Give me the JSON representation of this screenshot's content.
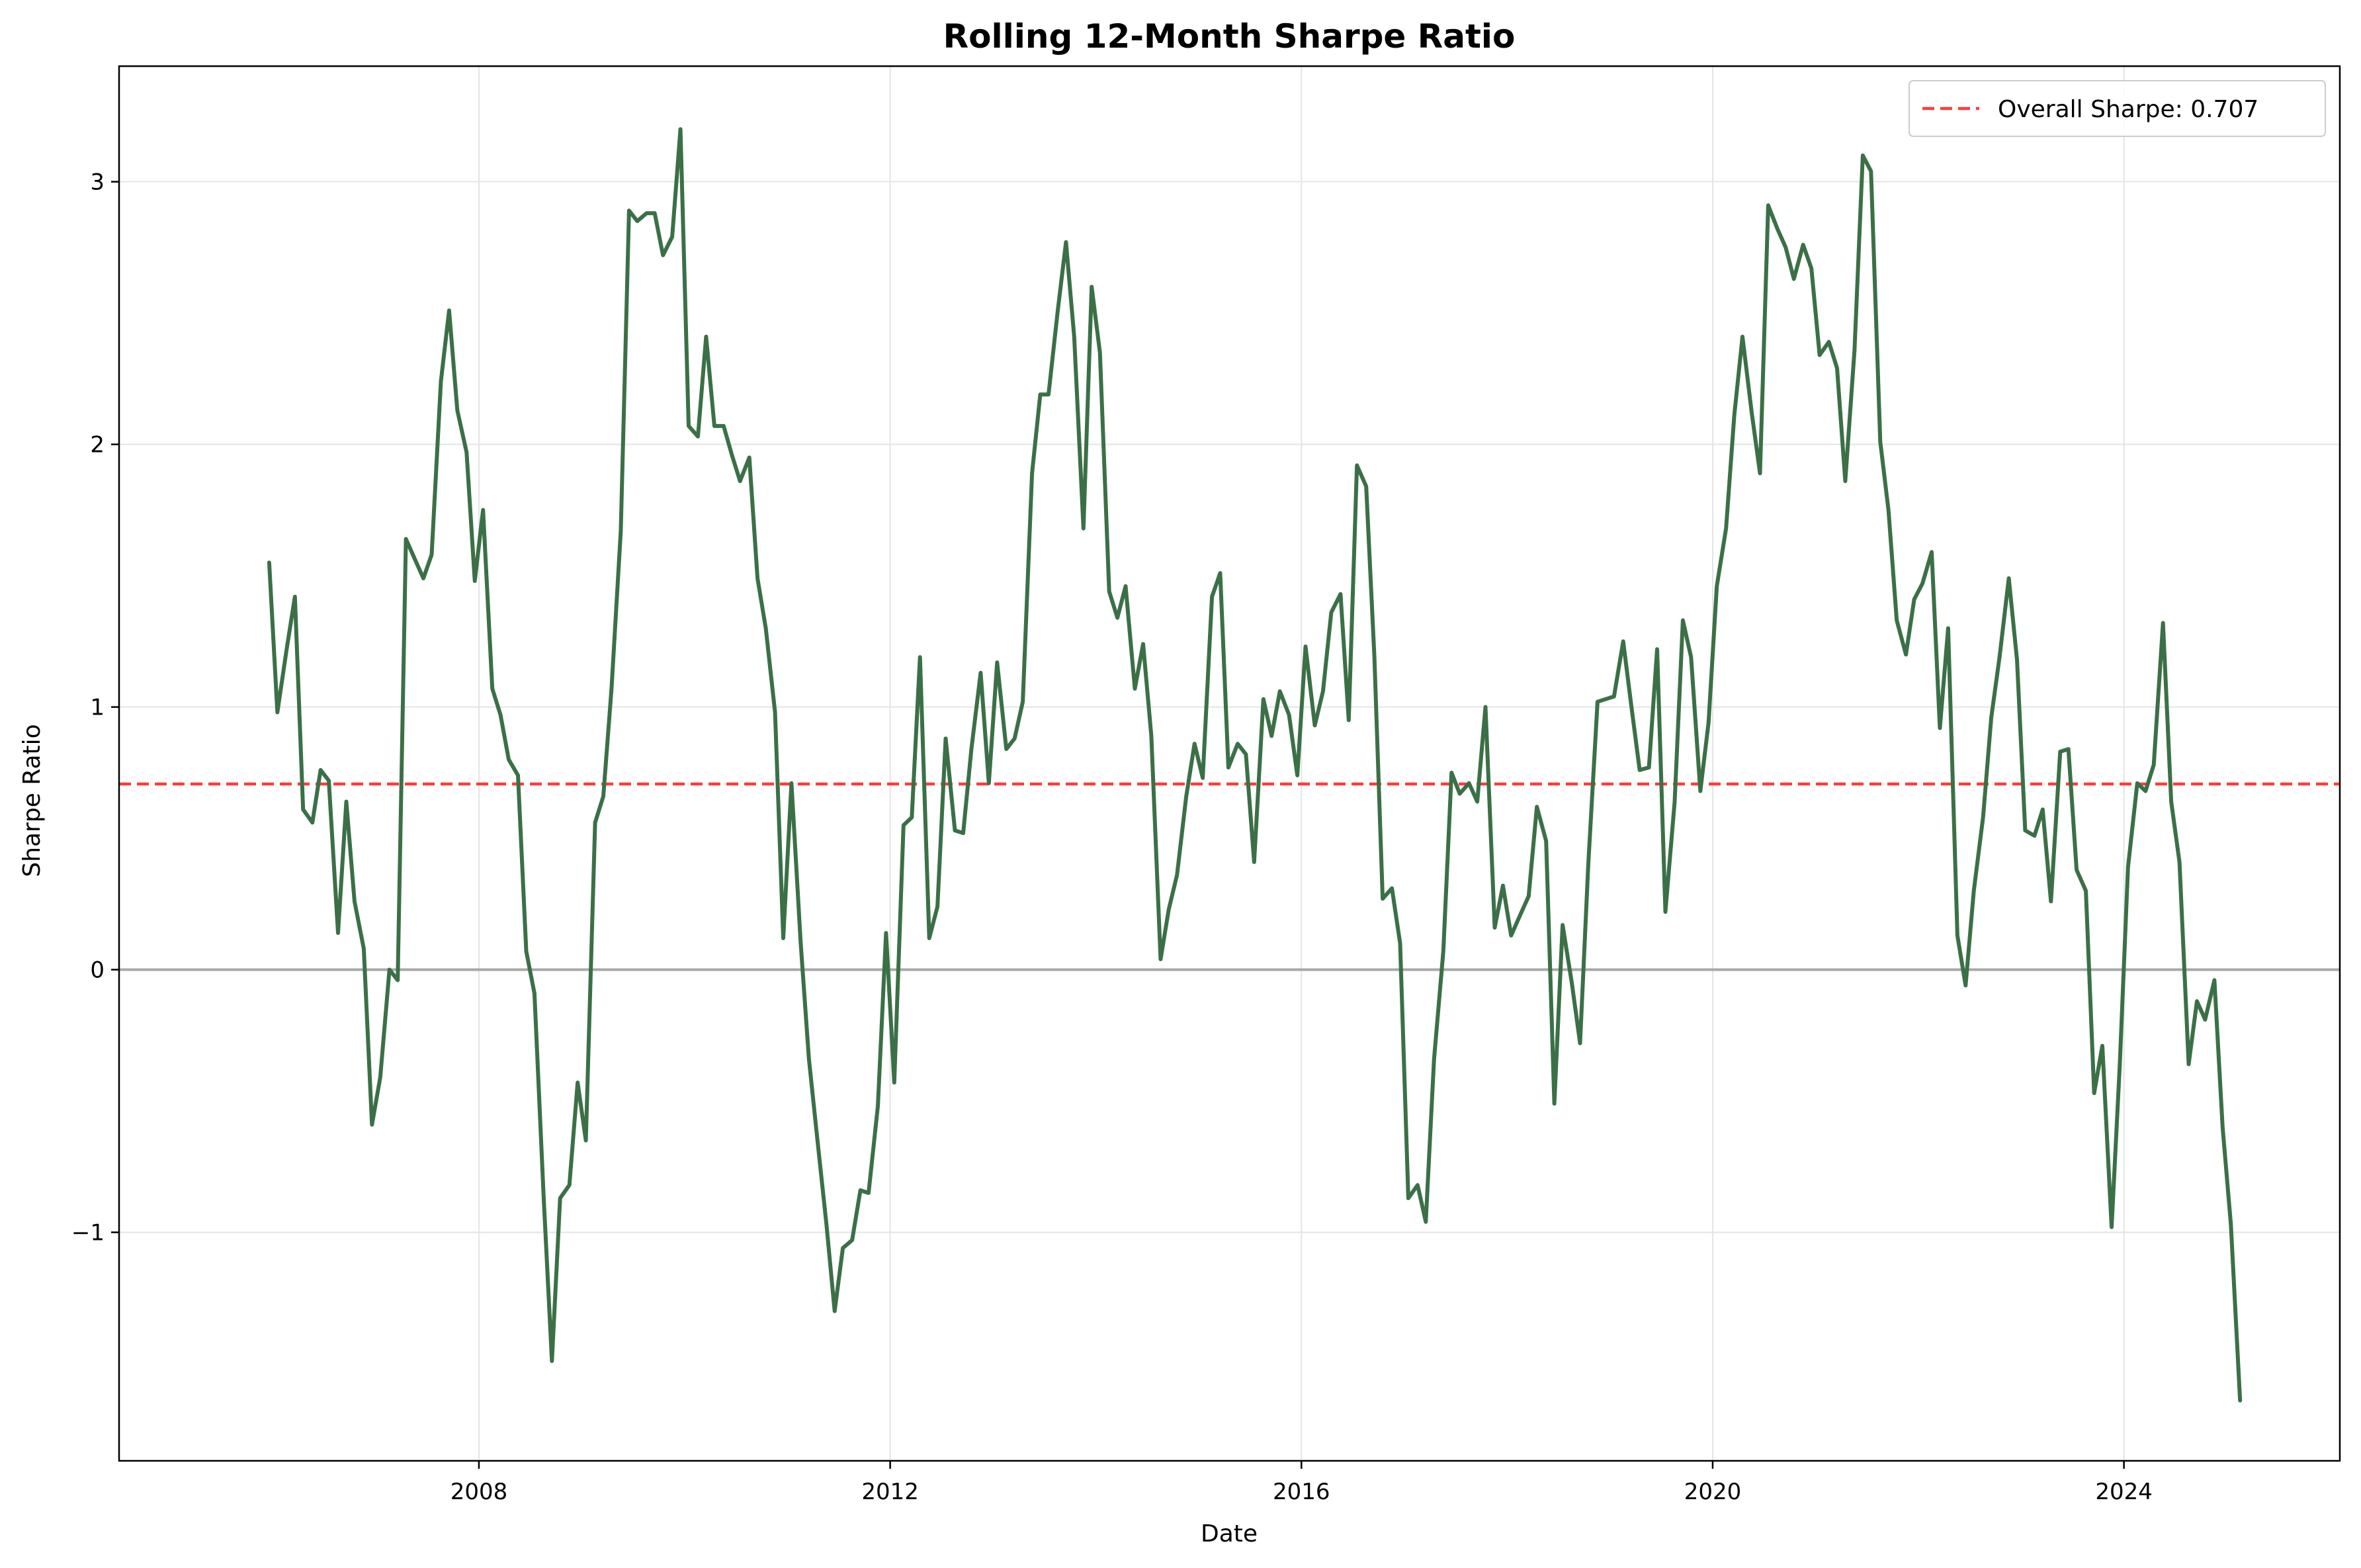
{
  "chart_data": {
    "type": "line",
    "title": "Rolling 12-Month Sharpe Ratio",
    "xlabel": "Date",
    "ylabel": "Sharpe Ratio",
    "xlim": [
      2004.5,
      2026.1
    ],
    "ylim": [
      -1.87,
      3.44
    ],
    "x_ticks": [
      2008,
      2012,
      2016,
      2020,
      2024
    ],
    "x_tick_labels": [
      "2008",
      "2012",
      "2016",
      "2020",
      "2024"
    ],
    "y_ticks": [
      -1,
      0,
      1,
      2,
      3
    ],
    "y_tick_labels": [
      "−1",
      "0",
      "1",
      "2",
      "3"
    ],
    "grid": true,
    "legend_position": "top-right",
    "reference_lines": [
      {
        "name": "Overall Sharpe: 0.707",
        "y": 0.707,
        "color": "#ff3b3b",
        "style": "dashed",
        "in_legend": true
      },
      {
        "name": "",
        "y": 0,
        "color": "#a8a8a8",
        "style": "solid",
        "in_legend": false
      }
    ],
    "series": [
      {
        "color": "#3b7047",
        "points": [
          [
            2005.96,
            1.55
          ],
          [
            2006.04,
            0.98
          ],
          [
            2006.13,
            1.22
          ],
          [
            2006.21,
            1.42
          ],
          [
            2006.29,
            0.61
          ],
          [
            2006.38,
            0.56
          ],
          [
            2006.46,
            0.76
          ],
          [
            2006.54,
            0.72
          ],
          [
            2006.63,
            0.14
          ],
          [
            2006.71,
            0.64
          ],
          [
            2006.79,
            0.26
          ],
          [
            2006.88,
            0.08
          ],
          [
            2006.96,
            -0.59
          ],
          [
            2007.04,
            -0.41
          ],
          [
            2007.13,
            0.0
          ],
          [
            2007.21,
            -0.04
          ],
          [
            2007.29,
            1.64
          ],
          [
            2007.38,
            1.56
          ],
          [
            2007.46,
            1.49
          ],
          [
            2007.54,
            1.58
          ],
          [
            2007.63,
            2.24
          ],
          [
            2007.71,
            2.51
          ],
          [
            2007.79,
            2.13
          ],
          [
            2007.88,
            1.97
          ],
          [
            2007.96,
            1.48
          ],
          [
            2008.04,
            1.75
          ],
          [
            2008.13,
            1.07
          ],
          [
            2008.21,
            0.97
          ],
          [
            2008.29,
            0.8
          ],
          [
            2008.38,
            0.74
          ],
          [
            2008.46,
            0.07
          ],
          [
            2008.54,
            -0.09
          ],
          [
            2008.63,
            -0.87
          ],
          [
            2008.71,
            -1.49
          ],
          [
            2008.79,
            -0.87
          ],
          [
            2008.88,
            -0.82
          ],
          [
            2008.96,
            -0.43
          ],
          [
            2009.04,
            -0.65
          ],
          [
            2009.13,
            0.56
          ],
          [
            2009.21,
            0.66
          ],
          [
            2009.29,
            1.07
          ],
          [
            2009.38,
            1.67
          ],
          [
            2009.46,
            2.89
          ],
          [
            2009.54,
            2.85
          ],
          [
            2009.63,
            2.88
          ],
          [
            2009.71,
            2.88
          ],
          [
            2009.79,
            2.72
          ],
          [
            2009.88,
            2.79
          ],
          [
            2009.96,
            3.2
          ],
          [
            2010.04,
            2.07
          ],
          [
            2010.13,
            2.03
          ],
          [
            2010.21,
            2.41
          ],
          [
            2010.29,
            2.07
          ],
          [
            2010.38,
            2.07
          ],
          [
            2010.46,
            1.96
          ],
          [
            2010.54,
            1.86
          ],
          [
            2010.63,
            1.95
          ],
          [
            2010.71,
            1.49
          ],
          [
            2010.79,
            1.3
          ],
          [
            2010.88,
            0.98
          ],
          [
            2010.96,
            0.12
          ],
          [
            2011.04,
            0.71
          ],
          [
            2011.13,
            0.1
          ],
          [
            2011.21,
            -0.34
          ],
          [
            2011.29,
            -0.64
          ],
          [
            2011.38,
            -0.97
          ],
          [
            2011.46,
            -1.3
          ],
          [
            2011.54,
            -1.06
          ],
          [
            2011.63,
            -1.03
          ],
          [
            2011.71,
            -0.84
          ],
          [
            2011.79,
            -0.85
          ],
          [
            2011.88,
            -0.52
          ],
          [
            2011.96,
            0.14
          ],
          [
            2012.04,
            -0.43
          ],
          [
            2012.13,
            0.55
          ],
          [
            2012.21,
            0.58
          ],
          [
            2012.29,
            1.19
          ],
          [
            2012.38,
            0.12
          ],
          [
            2012.46,
            0.24
          ],
          [
            2012.54,
            0.88
          ],
          [
            2012.63,
            0.53
          ],
          [
            2012.71,
            0.52
          ],
          [
            2012.79,
            0.84
          ],
          [
            2012.88,
            1.13
          ],
          [
            2012.96,
            0.71
          ],
          [
            2013.04,
            1.17
          ],
          [
            2013.13,
            0.84
          ],
          [
            2013.21,
            0.88
          ],
          [
            2013.29,
            1.02
          ],
          [
            2013.38,
            1.89
          ],
          [
            2013.46,
            2.19
          ],
          [
            2013.54,
            2.19
          ],
          [
            2013.63,
            2.51
          ],
          [
            2013.71,
            2.77
          ],
          [
            2013.79,
            2.41
          ],
          [
            2013.88,
            1.68
          ],
          [
            2013.96,
            2.6
          ],
          [
            2014.04,
            2.35
          ],
          [
            2014.13,
            1.44
          ],
          [
            2014.21,
            1.34
          ],
          [
            2014.29,
            1.46
          ],
          [
            2014.38,
            1.07
          ],
          [
            2014.46,
            1.24
          ],
          [
            2014.54,
            0.89
          ],
          [
            2014.63,
            0.04
          ],
          [
            2014.71,
            0.23
          ],
          [
            2014.79,
            0.36
          ],
          [
            2014.88,
            0.66
          ],
          [
            2014.96,
            0.86
          ],
          [
            2015.04,
            0.73
          ],
          [
            2015.13,
            1.42
          ],
          [
            2015.21,
            1.51
          ],
          [
            2015.29,
            0.77
          ],
          [
            2015.38,
            0.86
          ],
          [
            2015.46,
            0.82
          ],
          [
            2015.54,
            0.41
          ],
          [
            2015.63,
            1.03
          ],
          [
            2015.71,
            0.89
          ],
          [
            2015.79,
            1.06
          ],
          [
            2015.88,
            0.97
          ],
          [
            2015.96,
            0.74
          ],
          [
            2016.04,
            1.23
          ],
          [
            2016.13,
            0.93
          ],
          [
            2016.21,
            1.06
          ],
          [
            2016.29,
            1.36
          ],
          [
            2016.38,
            1.43
          ],
          [
            2016.46,
            0.95
          ],
          [
            2016.54,
            1.92
          ],
          [
            2016.63,
            1.84
          ],
          [
            2016.71,
            1.19
          ],
          [
            2016.79,
            0.27
          ],
          [
            2016.88,
            0.31
          ],
          [
            2016.96,
            0.1
          ],
          [
            2017.04,
            -0.87
          ],
          [
            2017.13,
            -0.82
          ],
          [
            2017.21,
            -0.96
          ],
          [
            2017.29,
            -0.34
          ],
          [
            2017.38,
            0.07
          ],
          [
            2017.46,
            0.75
          ],
          [
            2017.54,
            0.67
          ],
          [
            2017.63,
            0.71
          ],
          [
            2017.71,
            0.64
          ],
          [
            2017.79,
            1.0
          ],
          [
            2017.88,
            0.16
          ],
          [
            2017.96,
            0.32
          ],
          [
            2018.04,
            0.13
          ],
          [
            2018.13,
            0.21
          ],
          [
            2018.21,
            0.28
          ],
          [
            2018.29,
            0.62
          ],
          [
            2018.38,
            0.49
          ],
          [
            2018.46,
            -0.51
          ],
          [
            2018.54,
            0.17
          ],
          [
            2018.63,
            -0.05
          ],
          [
            2018.71,
            -0.28
          ],
          [
            2018.79,
            0.4
          ],
          [
            2018.88,
            1.02
          ],
          [
            2018.96,
            1.03
          ],
          [
            2019.04,
            1.04
          ],
          [
            2019.13,
            1.25
          ],
          [
            2019.21,
            1.0
          ],
          [
            2019.29,
            0.76
          ],
          [
            2019.38,
            0.77
          ],
          [
            2019.46,
            1.22
          ],
          [
            2019.54,
            0.22
          ],
          [
            2019.63,
            0.64
          ],
          [
            2019.71,
            1.33
          ],
          [
            2019.79,
            1.19
          ],
          [
            2019.88,
            0.68
          ],
          [
            2019.96,
            0.94
          ],
          [
            2020.04,
            1.46
          ],
          [
            2020.13,
            1.68
          ],
          [
            2020.21,
            2.11
          ],
          [
            2020.29,
            2.41
          ],
          [
            2020.38,
            2.12
          ],
          [
            2020.46,
            1.89
          ],
          [
            2020.54,
            2.91
          ],
          [
            2020.63,
            2.82
          ],
          [
            2020.71,
            2.75
          ],
          [
            2020.79,
            2.63
          ],
          [
            2020.88,
            2.76
          ],
          [
            2020.96,
            2.67
          ],
          [
            2021.04,
            2.34
          ],
          [
            2021.13,
            2.39
          ],
          [
            2021.21,
            2.29
          ],
          [
            2021.29,
            1.86
          ],
          [
            2021.38,
            2.36
          ],
          [
            2021.46,
            3.1
          ],
          [
            2021.54,
            3.04
          ],
          [
            2021.63,
            2.01
          ],
          [
            2021.71,
            1.75
          ],
          [
            2021.79,
            1.33
          ],
          [
            2021.88,
            1.2
          ],
          [
            2021.96,
            1.41
          ],
          [
            2022.04,
            1.47
          ],
          [
            2022.13,
            1.59
          ],
          [
            2022.21,
            0.92
          ],
          [
            2022.29,
            1.3
          ],
          [
            2022.38,
            0.13
          ],
          [
            2022.46,
            -0.06
          ],
          [
            2022.54,
            0.3
          ],
          [
            2022.63,
            0.58
          ],
          [
            2022.71,
            0.96
          ],
          [
            2022.79,
            1.19
          ],
          [
            2022.88,
            1.49
          ],
          [
            2022.96,
            1.18
          ],
          [
            2023.04,
            0.53
          ],
          [
            2023.13,
            0.51
          ],
          [
            2023.21,
            0.61
          ],
          [
            2023.29,
            0.26
          ],
          [
            2023.38,
            0.83
          ],
          [
            2023.46,
            0.84
          ],
          [
            2023.54,
            0.38
          ],
          [
            2023.63,
            0.3
          ],
          [
            2023.71,
            -0.47
          ],
          [
            2023.79,
            -0.29
          ],
          [
            2023.88,
            -0.98
          ],
          [
            2023.96,
            -0.36
          ],
          [
            2024.04,
            0.39
          ],
          [
            2024.13,
            0.71
          ],
          [
            2024.21,
            0.68
          ],
          [
            2024.29,
            0.78
          ],
          [
            2024.38,
            1.32
          ],
          [
            2024.46,
            0.64
          ],
          [
            2024.54,
            0.41
          ],
          [
            2024.63,
            -0.36
          ],
          [
            2024.71,
            -0.12
          ],
          [
            2024.79,
            -0.19
          ],
          [
            2024.88,
            -0.04
          ],
          [
            2024.96,
            -0.6
          ],
          [
            2025.04,
            -0.97
          ],
          [
            2025.13,
            -1.64
          ]
        ]
      }
    ]
  }
}
